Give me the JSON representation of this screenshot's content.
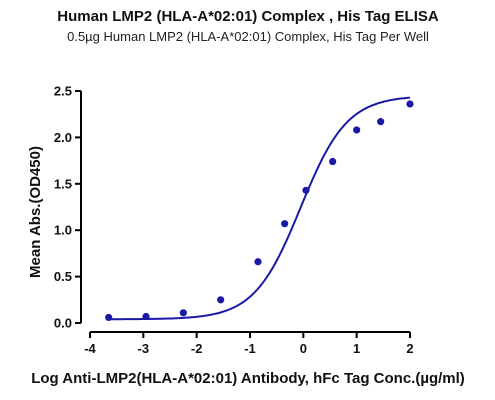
{
  "chart_data": {
    "type": "scatter",
    "title": "Human LMP2 (HLA-A*02:01) Complex , His Tag ELISA",
    "subtitle": "0.5µg Human LMP2 (HLA-A*02:01) Complex, His Tag Per Well",
    "xlabel": "Log Anti-LMP2(HLA-A*02:01) Antibody, hFc Tag Conc.(µg/ml)",
    "ylabel": "Mean Abs.(OD450)",
    "xlim": [
      -4,
      2
    ],
    "ylim": [
      0,
      2.5
    ],
    "xticks": [
      -4,
      -3,
      -2,
      -1,
      0,
      1,
      2
    ],
    "yticks": [
      0.0,
      0.5,
      1.0,
      1.5,
      2.0,
      2.5
    ],
    "ytick_labels": [
      "0.0",
      "0.5",
      "1.0",
      "1.5",
      "2.0",
      "2.5"
    ],
    "grid": false,
    "color": "#1a1aa6",
    "x": [
      -3.65,
      -2.95,
      -2.25,
      -1.55,
      -0.85,
      -0.35,
      0.05,
      0.55,
      1.0,
      1.45,
      2.0
    ],
    "y": [
      0.06,
      0.07,
      0.11,
      0.25,
      0.66,
      1.07,
      1.43,
      1.74,
      2.08,
      2.17,
      2.36
    ],
    "fit": {
      "model": "4PL",
      "bottom": 0.04,
      "top": 2.45,
      "logEC50": -0.05,
      "hill": 1.0
    }
  }
}
